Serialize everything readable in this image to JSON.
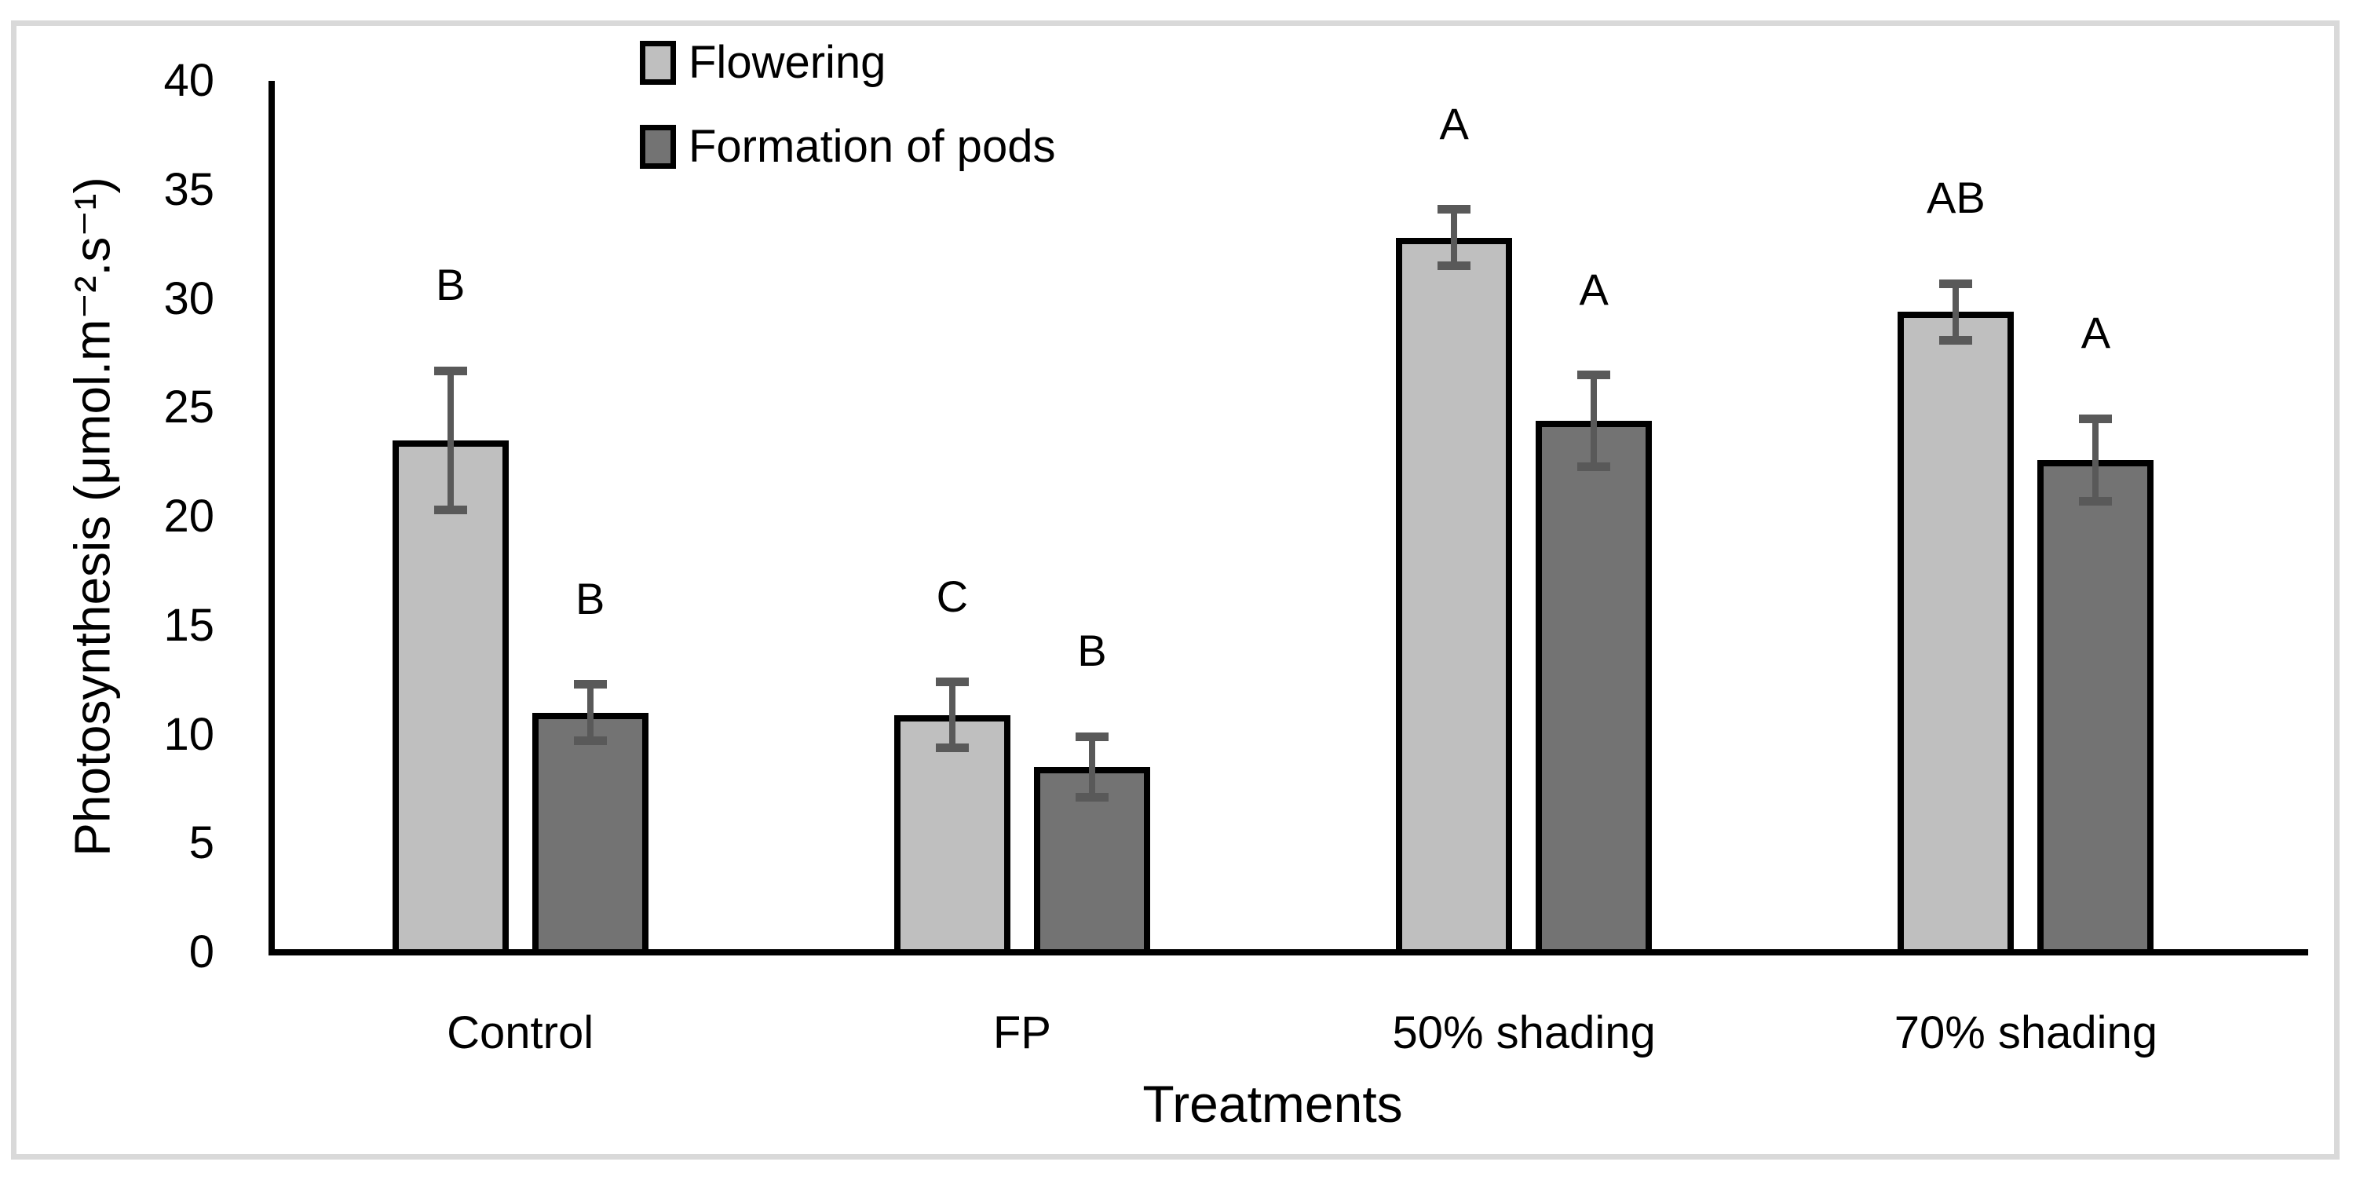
{
  "figure": {
    "background": "#ffffff",
    "frame_border_color": "#d9d9d9"
  },
  "chart_data": {
    "type": "bar",
    "title": "",
    "xlabel": "Treatments",
    "ylabel": "Photosynthesis (μmol.m⁻².s⁻¹)",
    "ylim": [
      0,
      40
    ],
    "ytick_interval": 5,
    "yticks": [
      0,
      5,
      10,
      15,
      20,
      25,
      30,
      35,
      40
    ],
    "grid": false,
    "legend_position": "top-center",
    "axis_color": "#000000",
    "error_bar_color": "#595959",
    "categories": [
      "Control",
      "FP",
      "50% shading",
      "70% shading"
    ],
    "series": [
      {
        "name": "Flowering",
        "color": "#bfbfbf",
        "border_color": "#000000",
        "values": [
          23.5,
          10.9,
          32.8,
          29.4
        ],
        "error_bars": [
          3.2,
          1.5,
          1.3,
          1.3
        ],
        "sig_letters": [
          "B",
          "C",
          "A",
          "AB"
        ]
      },
      {
        "name": "Formation of pods",
        "color": "#737373",
        "border_color": "#000000",
        "values": [
          11.0,
          8.5,
          24.4,
          22.6
        ],
        "error_bars": [
          1.3,
          1.4,
          2.1,
          1.9
        ],
        "sig_letters": [
          "B",
          "B",
          "A",
          "A"
        ]
      }
    ]
  }
}
